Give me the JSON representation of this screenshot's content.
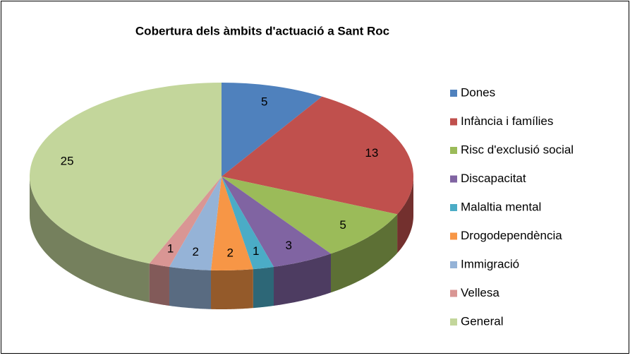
{
  "chart_data": {
    "type": "pie",
    "title": "Cobertura dels àmbits d'actuació a Sant Roc",
    "categories": [
      "Dones",
      "Infància i famílies",
      "Risc d'exclusió social",
      "Discapacitat",
      "Malaltia mental",
      "Drogodependència",
      "Immigració",
      "Vellesa",
      "General"
    ],
    "values": [
      5,
      13,
      5,
      3,
      1,
      2,
      2,
      1,
      25
    ],
    "colors": [
      "#4f81bd",
      "#c0504d",
      "#9bbb59",
      "#8064a2",
      "#4bacc6",
      "#f79646",
      "#95b3d7",
      "#d99694",
      "#c3d69b"
    ],
    "legend": "right"
  }
}
